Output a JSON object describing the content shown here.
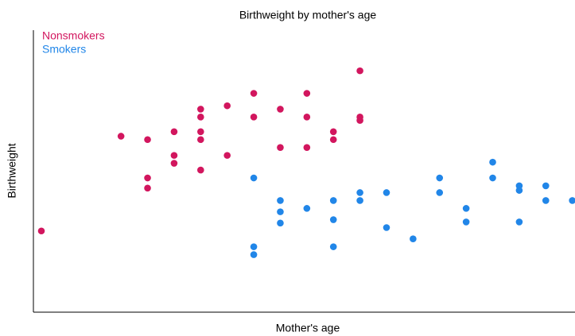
{
  "chart_data": {
    "type": "scatter",
    "title": "Birthweight by mother's age",
    "x_label": "Mother's age",
    "y_label": "Birthweight",
    "xlim": [
      14.7,
      35.1
    ],
    "ylim": [
      2000,
      4500
    ],
    "legend": "top-left",
    "series": [
      {
        "name": "Nonsmokers",
        "color": "#d2165e",
        "x": [
          15,
          18,
          19,
          19,
          19,
          20,
          20,
          20,
          21,
          21,
          21,
          21,
          21,
          22,
          22,
          23,
          23,
          24,
          24,
          25,
          25,
          25,
          26,
          26,
          27,
          27,
          27
        ],
        "values": [
          2720,
          3560,
          3530,
          3190,
          3100,
          3600,
          3390,
          3320,
          3800,
          3730,
          3600,
          3530,
          3260,
          3830,
          3390,
          3940,
          3730,
          3800,
          3460,
          3940,
          3730,
          3460,
          3600,
          3530,
          4140,
          3730,
          3700
        ]
      },
      {
        "name": "Smokers",
        "color": "#2186e8",
        "x": [
          23,
          23,
          23,
          24,
          24,
          24,
          25,
          26,
          26,
          26,
          27,
          27,
          28,
          28,
          29,
          30,
          30,
          31,
          31,
          32,
          32,
          33,
          33,
          33,
          34,
          34,
          35
        ],
        "values": [
          3190,
          2580,
          2510,
          2990,
          2890,
          2790,
          2920,
          2990,
          2820,
          2580,
          3060,
          2990,
          3060,
          2750,
          2650,
          3190,
          3060,
          2920,
          2800,
          3330,
          3190,
          3120,
          3080,
          2800,
          3120,
          2990,
          2990
        ]
      }
    ]
  }
}
